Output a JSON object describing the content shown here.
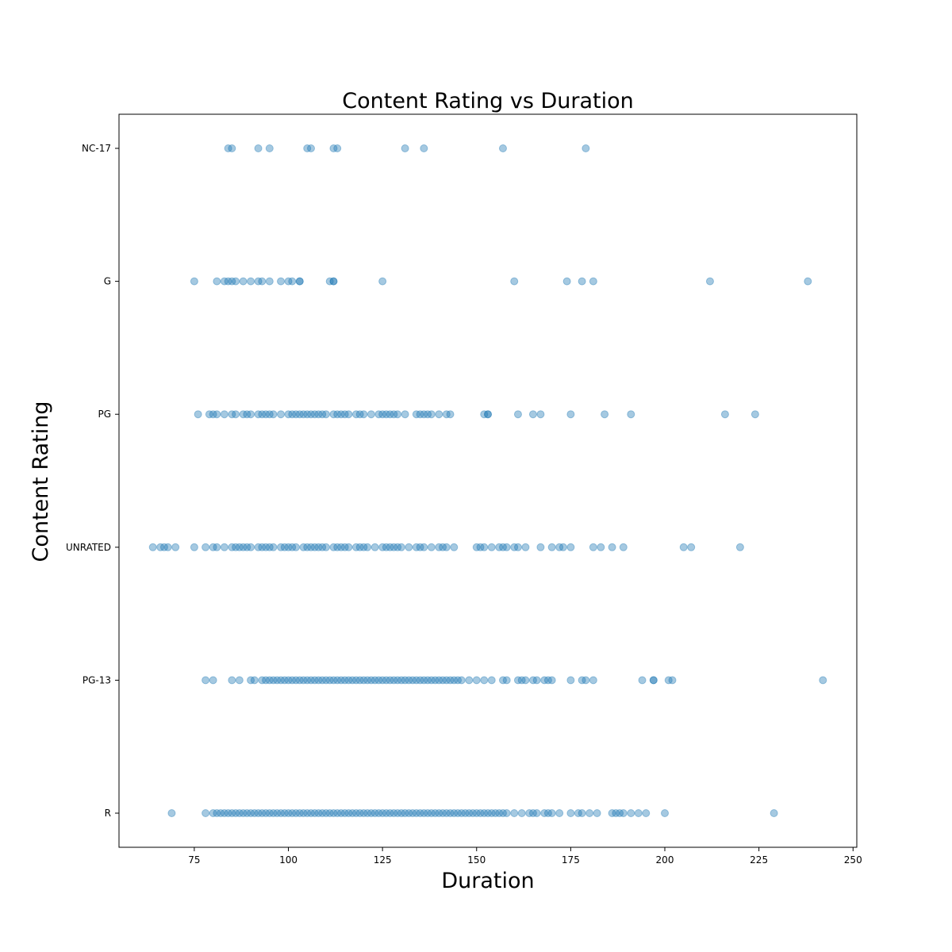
{
  "chart_data": {
    "type": "scatter",
    "title": "Content Rating vs Duration",
    "xlabel": "Duration",
    "ylabel": "Content Rating",
    "xlim": [
      55,
      251
    ],
    "x_ticks": [
      75,
      100,
      125,
      150,
      175,
      200,
      225,
      250
    ],
    "categories": [
      "R",
      "PG-13",
      "UNRATED",
      "PG",
      "G",
      "NC-17"
    ],
    "marker_color": "#1f77b4",
    "marker_alpha": 0.4,
    "grid": false,
    "series": [
      {
        "category": "NC-17",
        "x": [
          84,
          85,
          92,
          95,
          105,
          106,
          112,
          113,
          131,
          136,
          157,
          179
        ]
      },
      {
        "category": "G",
        "x": [
          75,
          81,
          83,
          84,
          85,
          86,
          88,
          90,
          92,
          93,
          95,
          98,
          100,
          101,
          103,
          103,
          111,
          112,
          112,
          125,
          160,
          174,
          178,
          181,
          212,
          238
        ]
      },
      {
        "category": "PG",
        "x": [
          76,
          79,
          80,
          81,
          83,
          85,
          86,
          88,
          89,
          90,
          92,
          93,
          94,
          95,
          96,
          98,
          100,
          101,
          102,
          103,
          104,
          105,
          106,
          107,
          108,
          109,
          110,
          112,
          113,
          114,
          115,
          116,
          118,
          119,
          120,
          122,
          124,
          125,
          126,
          127,
          128,
          129,
          131,
          134,
          135,
          136,
          137,
          138,
          140,
          142,
          143,
          152,
          153,
          153,
          161,
          165,
          167,
          175,
          184,
          191,
          216,
          224
        ]
      },
      {
        "category": "UNRATED",
        "x": [
          64,
          66,
          67,
          68,
          70,
          75,
          78,
          80,
          81,
          83,
          85,
          86,
          87,
          88,
          89,
          90,
          92,
          93,
          94,
          95,
          96,
          98,
          99,
          100,
          101,
          102,
          104,
          105,
          106,
          107,
          108,
          109,
          110,
          112,
          113,
          114,
          115,
          116,
          118,
          119,
          120,
          121,
          123,
          125,
          126,
          127,
          128,
          129,
          130,
          132,
          134,
          135,
          136,
          138,
          140,
          141,
          142,
          144,
          150,
          151,
          152,
          154,
          156,
          157,
          158,
          160,
          161,
          163,
          167,
          170,
          172,
          173,
          175,
          181,
          183,
          186,
          189,
          205,
          207,
          220
        ]
      },
      {
        "category": "PG-13",
        "x": [
          78,
          80,
          85,
          87,
          90,
          91,
          93,
          94,
          95,
          96,
          97,
          98,
          99,
          100,
          101,
          102,
          103,
          104,
          105,
          106,
          107,
          108,
          109,
          110,
          111,
          112,
          113,
          114,
          115,
          116,
          117,
          118,
          119,
          120,
          121,
          122,
          123,
          124,
          125,
          126,
          127,
          128,
          129,
          130,
          131,
          132,
          133,
          134,
          135,
          136,
          137,
          138,
          139,
          140,
          141,
          142,
          143,
          144,
          145,
          146,
          148,
          150,
          152,
          154,
          157,
          158,
          161,
          162,
          163,
          165,
          166,
          168,
          169,
          170,
          175,
          178,
          179,
          181,
          194,
          197,
          197,
          201,
          202,
          242
        ]
      },
      {
        "category": "R",
        "x": [
          69,
          78,
          80,
          81,
          82,
          83,
          84,
          85,
          86,
          87,
          88,
          89,
          90,
          91,
          92,
          93,
          94,
          95,
          96,
          97,
          98,
          99,
          100,
          101,
          102,
          103,
          104,
          105,
          106,
          107,
          108,
          109,
          110,
          111,
          112,
          113,
          114,
          115,
          116,
          117,
          118,
          119,
          120,
          121,
          122,
          123,
          124,
          125,
          126,
          127,
          128,
          129,
          130,
          131,
          132,
          133,
          134,
          135,
          136,
          137,
          138,
          139,
          140,
          141,
          142,
          143,
          144,
          145,
          146,
          147,
          148,
          149,
          150,
          151,
          152,
          153,
          154,
          155,
          156,
          157,
          158,
          160,
          162,
          164,
          165,
          166,
          168,
          169,
          170,
          172,
          175,
          177,
          178,
          180,
          182,
          186,
          187,
          188,
          189,
          191,
          193,
          195,
          200,
          229
        ]
      }
    ]
  }
}
